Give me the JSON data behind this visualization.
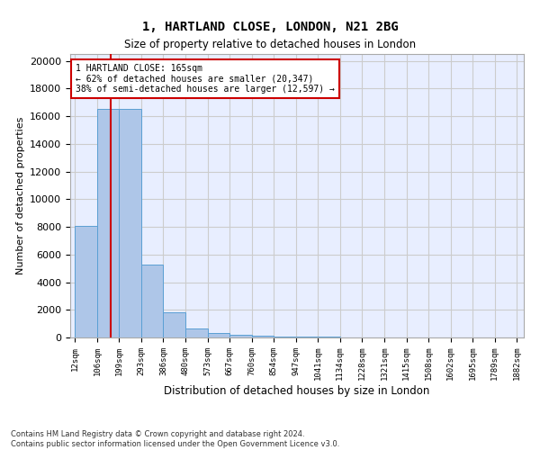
{
  "title1": "1, HARTLAND CLOSE, LONDON, N21 2BG",
  "title2": "Size of property relative to detached houses in London",
  "xlabel": "Distribution of detached houses by size in London",
  "ylabel": "Number of detached properties",
  "bar_values": [
    8100,
    16500,
    16500,
    5300,
    1800,
    650,
    350,
    200,
    100,
    60,
    50,
    35,
    25,
    18,
    12,
    8,
    6,
    5,
    3,
    2
  ],
  "bin_edges": [
    12,
    106,
    199,
    293,
    386,
    480,
    573,
    667,
    760,
    854,
    947,
    1041,
    1134,
    1228,
    1321,
    1415,
    1508,
    1602,
    1695,
    1789,
    1882
  ],
  "xtick_labels": [
    "12sqm",
    "106sqm",
    "199sqm",
    "293sqm",
    "386sqm",
    "480sqm",
    "573sqm",
    "667sqm",
    "760sqm",
    "854sqm",
    "947sqm",
    "1041sqm",
    "1134sqm",
    "1228sqm",
    "1321sqm",
    "1415sqm",
    "1508sqm",
    "1602sqm",
    "1695sqm",
    "1789sqm",
    "1882sqm"
  ],
  "ytick_labels": [
    "0",
    "2000",
    "4000",
    "6000",
    "8000",
    "10000",
    "12000",
    "14000",
    "16000",
    "18000",
    "20000"
  ],
  "ytick_values": [
    0,
    2000,
    4000,
    6000,
    8000,
    10000,
    12000,
    14000,
    16000,
    18000,
    20000
  ],
  "bar_color": "#aec6e8",
  "bar_edgecolor": "#5a9fd4",
  "vline_x": 165,
  "vline_color": "#cc0000",
  "annotation_title": "1 HARTLAND CLOSE: 165sqm",
  "annotation_line1": "← 62% of detached houses are smaller (20,347)",
  "annotation_line2": "38% of semi-detached houses are larger (12,597) →",
  "annotation_box_color": "#cc0000",
  "annotation_bg": "#ffffff",
  "footer1": "Contains HM Land Registry data © Crown copyright and database right 2024.",
  "footer2": "Contains public sector information licensed under the Open Government Licence v3.0.",
  "ylim": [
    0,
    20500
  ],
  "grid_color": "#cccccc",
  "background_color": "#e8eeff"
}
